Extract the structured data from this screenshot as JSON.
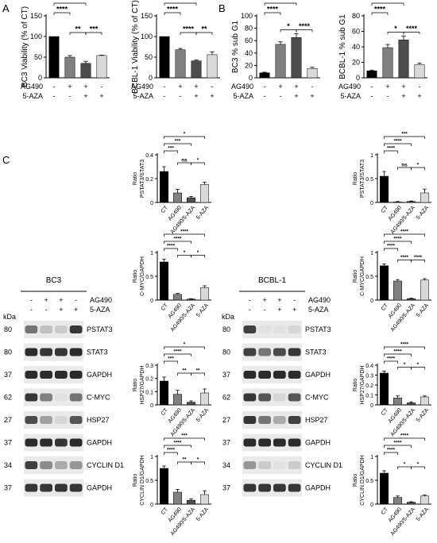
{
  "panels": {
    "a": "A",
    "b": "B",
    "c": "C"
  },
  "common": {
    "plus": "+",
    "minus": "-",
    "kda": "kDa",
    "ag490": "AG490",
    "aza": "5-AZA"
  },
  "conditions": [
    "CT",
    "AG490",
    "AG490/5-AZA",
    "5-AZA"
  ],
  "treatment_signs": {
    "ag490": [
      "-",
      "+",
      "+",
      "-"
    ],
    "aza": [
      "-",
      "-",
      "+",
      "+"
    ]
  },
  "chart_data": [
    {
      "id": "a1",
      "type": "bar",
      "ylabel": "BC3 Viability (% of CT)",
      "ylim": [
        0,
        150
      ],
      "yticks": [
        0,
        50,
        100,
        150
      ],
      "categories": [
        "CT",
        "AG490",
        "AG490/5-AZA",
        "5-AZA"
      ],
      "values": [
        100,
        50,
        35,
        54
      ],
      "errors": [
        0,
        4,
        5,
        1
      ],
      "colors": [
        "#000000",
        "#808080",
        "#4d4d4d",
        "#d9d9d9"
      ],
      "significance": [
        [
          "0",
          "1",
          "****",
          1
        ],
        [
          "0",
          "2",
          "****",
          2
        ],
        [
          "0",
          "3",
          "****",
          3
        ],
        [
          "1",
          "2",
          "**",
          1
        ],
        [
          "2",
          "3",
          "***",
          1
        ]
      ]
    },
    {
      "id": "a2",
      "type": "bar",
      "ylabel": "BCBL-1 Viability (% of CT)",
      "ylim": [
        0,
        150
      ],
      "yticks": [
        0,
        50,
        100,
        150
      ],
      "categories": [
        "CT",
        "AG490",
        "AG490/5-AZA",
        "5-AZA"
      ],
      "values": [
        100,
        68,
        41,
        56
      ],
      "errors": [
        0,
        3,
        2,
        7
      ],
      "colors": [
        "#000000",
        "#808080",
        "#4d4d4d",
        "#d9d9d9"
      ],
      "significance": [
        [
          "0",
          "1",
          "****",
          1
        ],
        [
          "0",
          "2",
          "****",
          2
        ],
        [
          "0",
          "3",
          "****",
          3
        ],
        [
          "1",
          "2",
          "****",
          1
        ],
        [
          "2",
          "3",
          "**",
          1
        ]
      ]
    },
    {
      "id": "b1",
      "type": "bar",
      "ylabel": "BC3 % sub G1",
      "ylim": [
        0,
        100
      ],
      "yticks": [
        0,
        20,
        40,
        60,
        80,
        100
      ],
      "categories": [
        "CT",
        "AG490",
        "AG490/5-AZA",
        "5-AZA"
      ],
      "values": [
        8,
        54,
        65,
        15
      ],
      "errors": [
        1,
        4,
        6,
        2
      ],
      "colors": [
        "#000000",
        "#808080",
        "#4d4d4d",
        "#d9d9d9"
      ],
      "significance": [
        [
          "0",
          "1",
          "****",
          1
        ],
        [
          "0",
          "2",
          "****",
          2
        ],
        [
          "0",
          "3",
          "*",
          3
        ],
        [
          "1",
          "2",
          "*",
          1
        ],
        [
          "2",
          "3",
          "****",
          1
        ]
      ]
    },
    {
      "id": "b2",
      "type": "bar",
      "ylabel": "BCBL-1 % sub G1",
      "ylim": [
        0,
        80
      ],
      "yticks": [
        0,
        20,
        40,
        60,
        80
      ],
      "categories": [
        "CT",
        "AG490",
        "AG490/5-AZA",
        "5-AZA"
      ],
      "values": [
        9,
        39,
        49,
        17
      ],
      "errors": [
        1,
        4,
        5,
        2
      ],
      "colors": [
        "#000000",
        "#808080",
        "#4d4d4d",
        "#d9d9d9"
      ],
      "significance": [
        [
          "0",
          "1",
          "****",
          1
        ],
        [
          "0",
          "2",
          "****",
          2
        ],
        [
          "0",
          "3",
          "*",
          3
        ],
        [
          "1",
          "2",
          "*",
          1
        ],
        [
          "2",
          "3",
          "****",
          1
        ]
      ]
    },
    {
      "id": "c1",
      "type": "bar",
      "ylabel": "Ratio PSTAT3/STAT3",
      "ylim": [
        0,
        0.4
      ],
      "yticks": [
        0,
        0.2,
        0.4
      ],
      "categories": [
        "CT",
        "AG490",
        "AG490/5-AZA",
        "5-AZA"
      ],
      "values": [
        0.26,
        0.08,
        0.04,
        0.15
      ],
      "errors": [
        0.04,
        0.03,
        0.01,
        0.02
      ],
      "colors": [
        "#000000",
        "#808080",
        "#4d4d4d",
        "#d9d9d9"
      ],
      "significance": [
        [
          "0",
          "1",
          "***",
          1
        ],
        [
          "0",
          "2",
          "***",
          2
        ],
        [
          "0",
          "3",
          "*",
          3
        ],
        [
          "1",
          "2",
          "ns",
          1
        ],
        [
          "2",
          "3",
          "*",
          1
        ]
      ]
    },
    {
      "id": "c2",
      "type": "bar",
      "ylabel": "Ratio PSTAT3/STAT3",
      "ylim": [
        0,
        1.0
      ],
      "yticks": [
        0,
        0.5,
        1.0
      ],
      "categories": [
        "CT",
        "AG490",
        "AG490/5-AZA",
        "5-AZA"
      ],
      "values": [
        0.55,
        0.01,
        0.02,
        0.2
      ],
      "errors": [
        0.1,
        0.01,
        0.01,
        0.08
      ],
      "colors": [
        "#000000",
        "#808080",
        "#4d4d4d",
        "#d9d9d9"
      ],
      "significance": [
        [
          "0",
          "1",
          "****",
          1
        ],
        [
          "0",
          "2",
          "****",
          2
        ],
        [
          "0",
          "3",
          "***",
          3
        ],
        [
          "1",
          "2",
          "ns",
          1
        ],
        [
          "2",
          "3",
          "*",
          1
        ]
      ]
    },
    {
      "id": "c3",
      "type": "bar",
      "ylabel": "Ratio C-MYC/GAPDH",
      "ylim": [
        0,
        1.0
      ],
      "yticks": [
        0,
        0.5,
        1.0
      ],
      "categories": [
        "CT",
        "AG490",
        "AG490/5-AZA",
        "5-AZA"
      ],
      "values": [
        0.8,
        0.12,
        0.02,
        0.26
      ],
      "errors": [
        0.06,
        0.02,
        0.01,
        0.04
      ],
      "colors": [
        "#000000",
        "#808080",
        "#4d4d4d",
        "#d9d9d9"
      ],
      "significance": [
        [
          "0",
          "1",
          "****",
          1
        ],
        [
          "0",
          "2",
          "****",
          2
        ],
        [
          "0",
          "3",
          "****",
          3
        ],
        [
          "1",
          "2",
          "*",
          1
        ],
        [
          "2",
          "3",
          "*",
          1
        ]
      ]
    },
    {
      "id": "c4",
      "type": "bar",
      "ylabel": "Ratio C-MYC/GAPDH",
      "ylim": [
        0,
        1.0
      ],
      "yticks": [
        0,
        0.5,
        1.0
      ],
      "categories": [
        "CT",
        "AG490",
        "AG490/5-AZA",
        "5-AZA"
      ],
      "values": [
        0.72,
        0.4,
        0.03,
        0.42
      ],
      "errors": [
        0.04,
        0.03,
        0.01,
        0.03
      ],
      "colors": [
        "#000000",
        "#808080",
        "#4d4d4d",
        "#d9d9d9"
      ],
      "significance": [
        [
          "0",
          "1",
          "****",
          1
        ],
        [
          "0",
          "2",
          "****",
          2
        ],
        [
          "0",
          "3",
          "****",
          3
        ],
        [
          "1",
          "2",
          "****",
          1
        ],
        [
          "2",
          "3",
          "****",
          1
        ]
      ]
    },
    {
      "id": "c5",
      "type": "bar",
      "ylabel": "Ratio HSP27/GAPDH",
      "ylim": [
        0,
        0.3
      ],
      "yticks": [
        0,
        0.1,
        0.2,
        0.3
      ],
      "categories": [
        "CT",
        "AG490",
        "AG490/5-AZA",
        "5-AZA"
      ],
      "values": [
        0.18,
        0.08,
        0.02,
        0.09
      ],
      "errors": [
        0.03,
        0.03,
        0.01,
        0.03
      ],
      "colors": [
        "#000000",
        "#808080",
        "#4d4d4d",
        "#d9d9d9"
      ],
      "significance": [
        [
          "0",
          "1",
          "***",
          1
        ],
        [
          "0",
          "2",
          "****",
          2
        ],
        [
          "0",
          "3",
          "*",
          3
        ],
        [
          "1",
          "2",
          "**",
          1
        ],
        [
          "2",
          "3",
          "**",
          1
        ]
      ]
    },
    {
      "id": "c6",
      "type": "bar",
      "ylabel": "Ratio HSP27/GAPDH",
      "ylim": [
        0,
        0.4
      ],
      "yticks": [
        0,
        0.1,
        0.2,
        0.3,
        0.4
      ],
      "categories": [
        "CT",
        "AG490",
        "AG490/5-AZA",
        "5-AZA"
      ],
      "values": [
        0.32,
        0.07,
        0.02,
        0.08
      ],
      "errors": [
        0.02,
        0.02,
        0.01,
        0.01
      ],
      "colors": [
        "#000000",
        "#808080",
        "#4d4d4d",
        "#d9d9d9"
      ],
      "significance": [
        [
          "0",
          "1",
          "****",
          1
        ],
        [
          "0",
          "2",
          "****",
          2
        ],
        [
          "0",
          "3",
          "****",
          3
        ],
        [
          "1",
          "2",
          "*",
          1
        ],
        [
          "2",
          "3",
          "*",
          1
        ]
      ]
    },
    {
      "id": "c7",
      "type": "bar",
      "ylabel": "Ratio CYCLIN D1/GAPDH",
      "ylim": [
        0,
        1.0
      ],
      "yticks": [
        0,
        0.5,
        1.0
      ],
      "categories": [
        "CT",
        "AG490",
        "AG490/5-AZA",
        "5-AZA"
      ],
      "values": [
        0.75,
        0.25,
        0.08,
        0.2
      ],
      "errors": [
        0.05,
        0.06,
        0.03,
        0.08
      ],
      "colors": [
        "#000000",
        "#808080",
        "#4d4d4d",
        "#d9d9d9"
      ],
      "significance": [
        [
          "0",
          "1",
          "****",
          1
        ],
        [
          "0",
          "2",
          "****",
          2
        ],
        [
          "0",
          "3",
          "***",
          3
        ],
        [
          "1",
          "2",
          "**",
          1
        ],
        [
          "2",
          "3",
          "*",
          1
        ]
      ]
    },
    {
      "id": "c8",
      "type": "bar",
      "ylabel": "Ratio CYCLIN D1/GAPDH",
      "ylim": [
        0,
        1.0
      ],
      "yticks": [
        0,
        0.5,
        1.0
      ],
      "categories": [
        "CT",
        "AG490",
        "AG490/5-AZA",
        "5-AZA"
      ],
      "values": [
        0.65,
        0.14,
        0.04,
        0.17
      ],
      "errors": [
        0.05,
        0.03,
        0.01,
        0.02
      ],
      "colors": [
        "#000000",
        "#808080",
        "#4d4d4d",
        "#d9d9d9"
      ],
      "significance": [
        [
          "0",
          "1",
          "****",
          1
        ],
        [
          "0",
          "2",
          "****",
          2
        ],
        [
          "0",
          "3",
          "****",
          3
        ],
        [
          "1",
          "2",
          "*",
          1
        ],
        [
          "2",
          "3",
          "*",
          1
        ]
      ]
    }
  ],
  "westerns": [
    {
      "id": "bc3",
      "cell_line": "BC3",
      "bands": [
        {
          "kda": "80",
          "protein": "PSTAT3",
          "lanes": [
            0.55,
            0.2,
            0.15,
            0.85
          ]
        },
        {
          "kda": "80",
          "protein": "STAT3",
          "lanes": [
            0.9,
            0.85,
            0.85,
            0.9
          ]
        },
        {
          "kda": "37",
          "protein": "GAPDH",
          "lanes": [
            0.9,
            0.9,
            0.9,
            0.9
          ]
        },
        {
          "kda": "62",
          "protein": "C-MYC",
          "lanes": [
            0.85,
            0.5,
            0.05,
            0.55
          ]
        },
        {
          "kda": "27",
          "protein": "HSP27",
          "lanes": [
            0.75,
            0.35,
            0.1,
            0.7
          ]
        },
        {
          "kda": "37",
          "protein": "GAPDH",
          "lanes": [
            0.9,
            0.9,
            0.85,
            0.9
          ]
        },
        {
          "kda": "34",
          "protein": "CYCLIN D1",
          "lanes": [
            0.8,
            0.45,
            0.3,
            0.4
          ]
        },
        {
          "kda": "37",
          "protein": "GAPDH",
          "lanes": [
            0.85,
            0.85,
            0.85,
            0.85
          ]
        }
      ]
    },
    {
      "id": "bcbl1",
      "cell_line": "BCBL-1",
      "bands": [
        {
          "kda": "80",
          "protein": "PSTAT3",
          "lanes": [
            0.8,
            0.05,
            0.05,
            0.1
          ]
        },
        {
          "kda": "80",
          "protein": "STAT3",
          "lanes": [
            0.8,
            0.55,
            0.75,
            0.85
          ]
        },
        {
          "kda": "37",
          "protein": "GAPDH",
          "lanes": [
            0.9,
            0.9,
            0.9,
            0.9
          ]
        },
        {
          "kda": "62",
          "protein": "C-MYC",
          "lanes": [
            0.85,
            0.7,
            0.1,
            0.7
          ]
        },
        {
          "kda": "27",
          "protein": "HSP27",
          "lanes": [
            0.85,
            0.55,
            0.3,
            0.8
          ]
        },
        {
          "kda": "37",
          "protein": "GAPDH",
          "lanes": [
            0.9,
            0.9,
            0.9,
            0.9
          ]
        },
        {
          "kda": "34",
          "protein": "CYCLIN D1",
          "lanes": [
            0.4,
            0.15,
            0.05,
            0.15
          ]
        },
        {
          "kda": "37",
          "protein": "GAPDH",
          "lanes": [
            0.85,
            0.85,
            0.85,
            0.85
          ]
        }
      ]
    }
  ]
}
